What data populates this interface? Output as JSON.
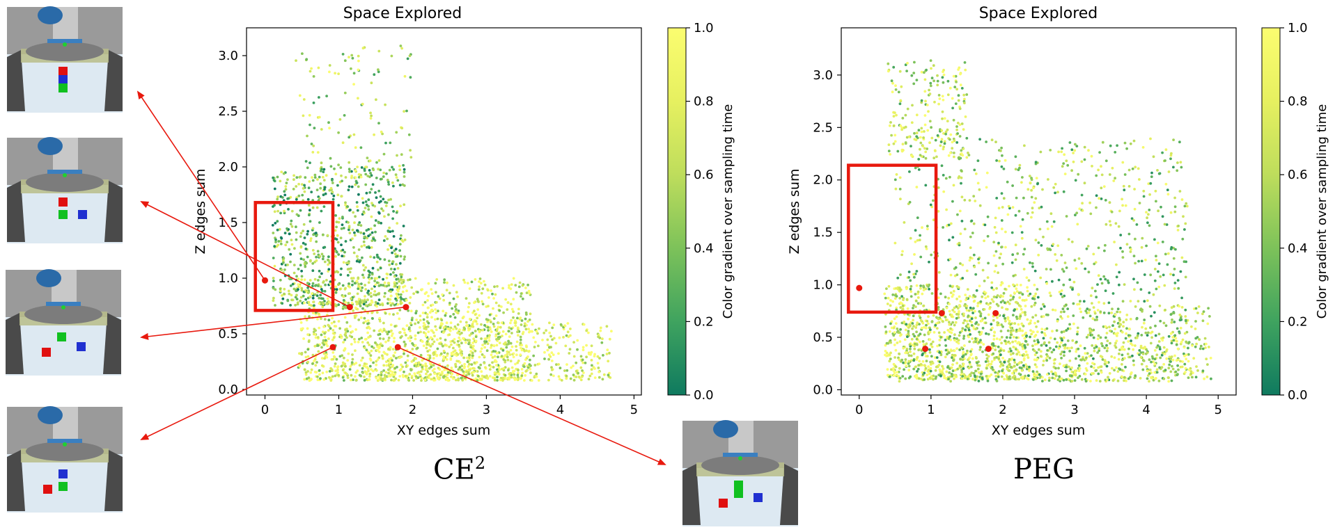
{
  "panels": [
    {
      "caption": "CE",
      "caption_superscript": "2",
      "chart_data": {
        "type": "scatter",
        "title": "Space Explored",
        "xlabel": "XY edges sum",
        "ylabel": "Z edges sum",
        "xlim": [
          -0.25,
          5.1
        ],
        "ylim": [
          -0.05,
          3.25
        ],
        "xticks": [
          "0",
          "1",
          "2",
          "3",
          "4",
          "5"
        ],
        "yticks": [
          "0.0",
          "0.5",
          "1.0",
          "1.5",
          "2.0",
          "2.5",
          "3.0"
        ],
        "colorbar": {
          "label": "Color gradient over sampling time",
          "range": [
            0.0,
            1.0
          ],
          "ticks": [
            "0.0",
            "0.2",
            "0.4",
            "0.6",
            "0.8",
            "1.0"
          ],
          "colormap": [
            "#0f7a5f",
            "#3fa35f",
            "#7dc25a",
            "#bedd5c",
            "#e6f060",
            "#fbfd70"
          ]
        },
        "highlight_box": {
          "x": [
            -0.13,
            0.92
          ],
          "y": [
            0.71,
            1.68
          ],
          "color": "#e8190e"
        },
        "marked_points": [
          {
            "x": 0.0,
            "y": 0.98
          },
          {
            "x": 1.15,
            "y": 0.74
          },
          {
            "x": 1.91,
            "y": 0.74
          },
          {
            "x": 0.92,
            "y": 0.38
          },
          {
            "x": 1.8,
            "y": 0.38
          }
        ],
        "point_cloud_regions": [
          {
            "x": [
              0.1,
              1.9
            ],
            "y": [
              0.75,
              2.0
            ],
            "weight": 0.3,
            "color_bias": 0.4
          },
          {
            "x": [
              0.45,
              3.6
            ],
            "y": [
              0.08,
              1.0
            ],
            "weight": 0.45,
            "color_bias": 0.75
          },
          {
            "x": [
              1.5,
              4.7
            ],
            "y": [
              0.08,
              0.6
            ],
            "weight": 0.2,
            "color_bias": 0.85
          },
          {
            "x": [
              0.4,
              2.0
            ],
            "y": [
              1.9,
              3.1
            ],
            "weight": 0.05,
            "color_bias": 0.6
          }
        ]
      }
    },
    {
      "caption": "PEG",
      "caption_superscript": "",
      "chart_data": {
        "type": "scatter",
        "title": "Space Explored",
        "xlabel": "XY edges sum",
        "ylabel": "Z edges sum",
        "xlim": [
          -0.25,
          5.25
        ],
        "ylim": [
          -0.05,
          3.45
        ],
        "xticks": [
          "0",
          "1",
          "2",
          "3",
          "4",
          "5"
        ],
        "yticks": [
          "0.0",
          "0.5",
          "1.0",
          "1.5",
          "2.0",
          "2.5",
          "3.0"
        ],
        "colorbar": {
          "label": "Color gradient over sampling time",
          "range": [
            0.0,
            1.0
          ],
          "ticks": [
            "0.0",
            "0.2",
            "0.4",
            "0.6",
            "0.8",
            "1.0"
          ],
          "colormap": [
            "#0f7a5f",
            "#3fa35f",
            "#7dc25a",
            "#bedd5c",
            "#e6f060",
            "#fbfd70"
          ]
        },
        "highlight_box": {
          "x": [
            -0.15,
            1.07
          ],
          "y": [
            0.74,
            2.14
          ],
          "color": "#e8190e"
        },
        "marked_points": [
          {
            "x": 0.0,
            "y": 0.97
          },
          {
            "x": 1.15,
            "y": 0.73
          },
          {
            "x": 1.9,
            "y": 0.73
          },
          {
            "x": 0.92,
            "y": 0.39
          },
          {
            "x": 1.8,
            "y": 0.39
          }
        ],
        "point_cloud_regions": [
          {
            "x": [
              0.35,
              2.5
            ],
            "y": [
              0.1,
              1.0
            ],
            "weight": 0.35,
            "color_bias": 0.75
          },
          {
            "x": [
              0.5,
              4.6
            ],
            "y": [
              0.08,
              2.4
            ],
            "weight": 0.4,
            "color_bias": 0.55
          },
          {
            "x": [
              0.4,
              1.5
            ],
            "y": [
              2.2,
              3.15
            ],
            "weight": 0.08,
            "color_bias": 0.65
          },
          {
            "x": [
              2.5,
              4.9
            ],
            "y": [
              0.08,
              0.8
            ],
            "weight": 0.17,
            "color_bias": 0.7
          }
        ]
      }
    }
  ],
  "thumbnails": [
    {
      "cubes": [
        {
          "color": "#e01010",
          "pos": "stack-top"
        },
        {
          "color": "#2030d0",
          "pos": "stack-mid"
        },
        {
          "color": "#10c020",
          "pos": "stack-bottom"
        }
      ]
    },
    {
      "cubes": [
        {
          "color": "#e01010",
          "pos": "left-top"
        },
        {
          "color": "#10c020",
          "pos": "left-bottom"
        },
        {
          "color": "#2030d0",
          "pos": "right"
        }
      ]
    },
    {
      "cubes": [
        {
          "color": "#10c020",
          "pos": "center-top"
        },
        {
          "color": "#e01010",
          "pos": "left"
        },
        {
          "color": "#2030d0",
          "pos": "right"
        }
      ]
    },
    {
      "cubes": [
        {
          "color": "#2030d0",
          "pos": "center-top"
        },
        {
          "color": "#10c020",
          "pos": "center"
        },
        {
          "color": "#e01010",
          "pos": "left"
        }
      ]
    },
    {
      "cubes": [
        {
          "color": "#10c020",
          "pos": "stack-top"
        },
        {
          "color": "#10c020",
          "pos": "stack-mid"
        },
        {
          "color": "#2030d0",
          "pos": "right"
        },
        {
          "color": "#e01010",
          "pos": "left"
        }
      ]
    }
  ],
  "annotation_color": "#e8190e"
}
